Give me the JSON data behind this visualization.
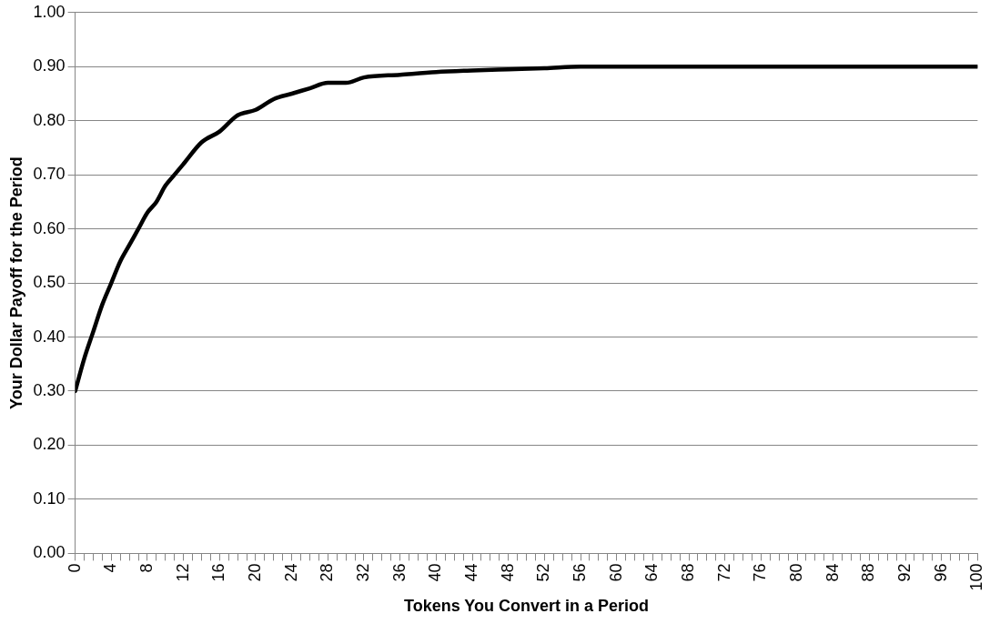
{
  "chart_data": {
    "type": "line",
    "xlabel": "Tokens You Convert in a Period",
    "ylabel": "Your Dollar Payoff for the Period",
    "x": [
      0,
      1,
      2,
      3,
      4,
      5,
      6,
      7,
      8,
      9,
      10,
      11,
      12,
      14,
      16,
      18,
      20,
      22,
      24,
      26,
      28,
      30,
      32,
      36,
      40,
      44,
      48,
      52,
      56,
      60,
      70,
      80,
      90,
      100
    ],
    "series": [
      {
        "color": "#000000",
        "values": [
          0.3,
          0.36,
          0.41,
          0.46,
          0.5,
          0.54,
          0.57,
          0.6,
          0.63,
          0.65,
          0.68,
          0.7,
          0.72,
          0.76,
          0.78,
          0.81,
          0.82,
          0.84,
          0.85,
          0.86,
          0.87,
          0.87,
          0.88,
          0.885,
          0.89,
          0.893,
          0.895,
          0.897,
          0.9,
          0.9,
          0.9,
          0.9,
          0.9,
          0.9
        ]
      }
    ],
    "xlim": [
      0,
      100
    ],
    "xticks": [
      0,
      {
        "value": 1,
        "label": null
      },
      {
        "value": 2,
        "label": null
      },
      {
        "value": 3,
        "label": null
      },
      4,
      {
        "value": 5,
        "label": null
      },
      {
        "value": 6,
        "label": null
      },
      {
        "value": 7,
        "label": null
      },
      8,
      {
        "value": 9,
        "label": null
      },
      {
        "value": 10,
        "label": null
      },
      {
        "value": 11,
        "label": null
      },
      12,
      {
        "value": 13,
        "label": null
      },
      {
        "value": 14,
        "label": null
      },
      {
        "value": 15,
        "label": null
      },
      16,
      {
        "value": 17,
        "label": null
      },
      {
        "value": 18,
        "label": null
      },
      {
        "value": 19,
        "label": null
      },
      20,
      {
        "value": 21,
        "label": null
      },
      {
        "value": 22,
        "label": null
      },
      {
        "value": 23,
        "label": null
      },
      24,
      {
        "value": 25,
        "label": null
      },
      {
        "value": 26,
        "label": null
      },
      {
        "value": 27,
        "label": null
      },
      28,
      {
        "value": 29,
        "label": null
      },
      {
        "value": 30,
        "label": null
      },
      {
        "value": 31,
        "label": null
      },
      32,
      {
        "value": 33,
        "label": null
      },
      {
        "value": 34,
        "label": null
      },
      {
        "value": 35,
        "label": null
      },
      36,
      {
        "value": 37,
        "label": null
      },
      {
        "value": 38,
        "label": null
      },
      {
        "value": 39,
        "label": null
      },
      40,
      {
        "value": 41,
        "label": null
      },
      {
        "value": 42,
        "label": null
      },
      {
        "value": 43,
        "label": null
      },
      44,
      {
        "value": 45,
        "label": null
      },
      {
        "value": 46,
        "label": null
      },
      {
        "value": 47,
        "label": null
      },
      48,
      {
        "value": 49,
        "label": null
      },
      {
        "value": 50,
        "label": null
      },
      {
        "value": 51,
        "label": null
      },
      52,
      {
        "value": 53,
        "label": null
      },
      {
        "value": 54,
        "label": null
      },
      {
        "value": 55,
        "label": null
      },
      56,
      {
        "value": 57,
        "label": null
      },
      {
        "value": 58,
        "label": null
      },
      {
        "value": 59,
        "label": null
      },
      60,
      {
        "value": 61,
        "label": null
      },
      {
        "value": 62,
        "label": null
      },
      {
        "value": 63,
        "label": null
      },
      64,
      {
        "value": 65,
        "label": null
      },
      {
        "value": 66,
        "label": null
      },
      {
        "value": 67,
        "label": null
      },
      68,
      {
        "value": 69,
        "label": null
      },
      {
        "value": 70,
        "label": null
      },
      {
        "value": 71,
        "label": null
      },
      72,
      {
        "value": 73,
        "label": null
      },
      {
        "value": 74,
        "label": null
      },
      {
        "value": 75,
        "label": null
      },
      76,
      {
        "value": 77,
        "label": null
      },
      {
        "value": 78,
        "label": null
      },
      {
        "value": 79,
        "label": null
      },
      80,
      {
        "value": 81,
        "label": null
      },
      {
        "value": 82,
        "label": null
      },
      {
        "value": 83,
        "label": null
      },
      84,
      {
        "value": 85,
        "label": null
      },
      {
        "value": 86,
        "label": null
      },
      {
        "value": 87,
        "label": null
      },
      88,
      {
        "value": 89,
        "label": null
      },
      {
        "value": 90,
        "label": null
      },
      {
        "value": 91,
        "label": null
      },
      92,
      {
        "value": 93,
        "label": null
      },
      {
        "value": 94,
        "label": null
      },
      {
        "value": 95,
        "label": null
      },
      96,
      {
        "value": 97,
        "label": null
      },
      {
        "value": 98,
        "label": null
      },
      {
        "value": 99,
        "label": null
      },
      100
    ],
    "ylim": [
      0,
      1
    ],
    "yticks": [
      {
        "value": 0,
        "label": "0.00"
      },
      {
        "value": 0.1,
        "label": "0.10"
      },
      {
        "value": 0.2,
        "label": "0.20"
      },
      {
        "value": 0.3,
        "label": "0.30"
      },
      {
        "value": 0.4,
        "label": "0.40"
      },
      {
        "value": 0.5,
        "label": "0.50"
      },
      {
        "value": 0.6,
        "label": "0.60"
      },
      {
        "value": 0.7,
        "label": "0.70"
      },
      {
        "value": 0.8,
        "label": "0.80"
      },
      {
        "value": 0.9,
        "label": "0.90"
      },
      {
        "value": 1,
        "label": "1.00"
      }
    ],
    "grid": "y",
    "legend": false,
    "marker": "none",
    "line_style": "solid"
  }
}
